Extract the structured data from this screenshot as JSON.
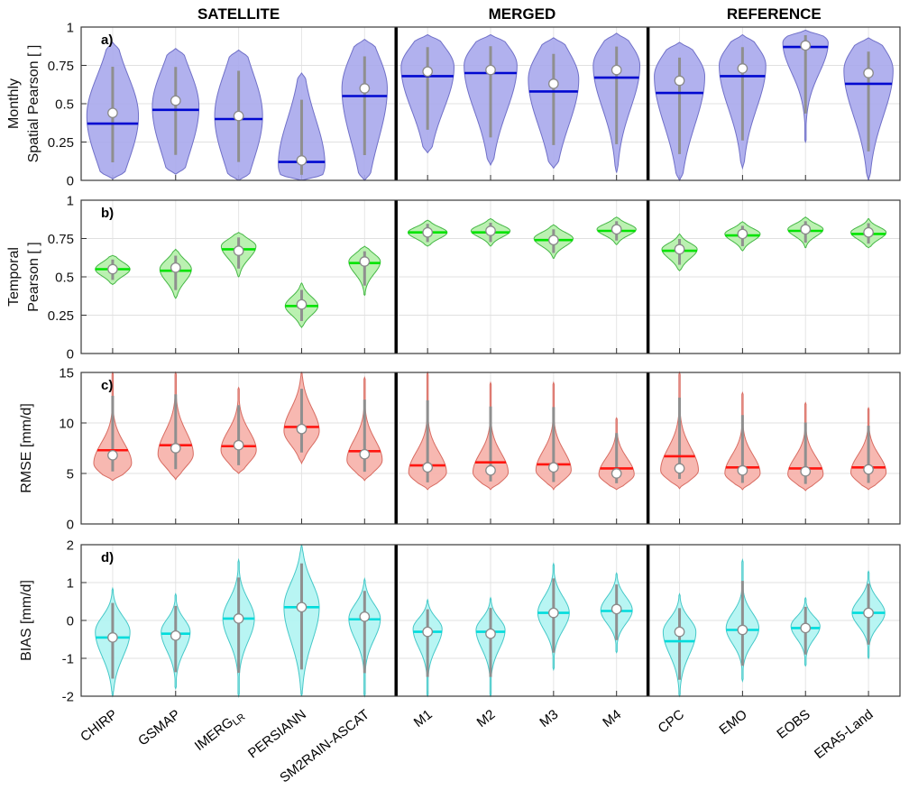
{
  "figure": {
    "background": "#ffffff",
    "group_headers": [
      {
        "label": "SATELLITE",
        "from": 0,
        "to": 4
      },
      {
        "label": "MERGED",
        "from": 5,
        "to": 8
      },
      {
        "label": "REFERENCE",
        "from": 9,
        "to": 12
      }
    ],
    "separators_after": [
      4,
      8
    ],
    "categories": [
      "CHIRP",
      "GSMAP",
      "IMERG_LR",
      "PERSIANN",
      "SM2RAIN-ASCAT",
      "M1",
      "M2",
      "M3",
      "M4",
      "CPC",
      "EMO",
      "EOBS",
      "ERA5-Land"
    ]
  },
  "chart_data": [
    {
      "type": "violin",
      "panel_letter": "a)",
      "ylabel_lines": [
        "Monthly",
        "Spatial Pearson [ ]"
      ],
      "ylim": [
        0,
        1
      ],
      "yticks": [
        0,
        0.25,
        0.5,
        0.75,
        1
      ],
      "ytick_labels": [
        "0",
        "0.25",
        "0.5",
        "0.75",
        "1"
      ],
      "fill": "#a9a9ec",
      "edge": "#7070c8",
      "median_color": "#0008d0",
      "violins": [
        {
          "cat": "CHIRP",
          "lo": 0.01,
          "hi": 0.9,
          "mode": 0.42,
          "sl": 0.3,
          "sh": 0.26,
          "median": 0.37,
          "mean": 0.44,
          "w": 0.82
        },
        {
          "cat": "GSMAP",
          "lo": 0.04,
          "hi": 0.86,
          "mode": 0.48,
          "sl": 0.3,
          "sh": 0.24,
          "median": 0.46,
          "mean": 0.52,
          "w": 0.74
        },
        {
          "cat": "IMERG_LR",
          "lo": 0.0,
          "hi": 0.85,
          "mode": 0.42,
          "sl": 0.3,
          "sh": 0.28,
          "median": 0.4,
          "mean": 0.42,
          "w": 0.76
        },
        {
          "cat": "PERSIANN",
          "lo": 0.0,
          "hi": 0.7,
          "mode": 0.1,
          "sl": 0.14,
          "sh": 0.3,
          "median": 0.12,
          "mean": 0.13,
          "w": 0.74
        },
        {
          "cat": "SM2RAIN-ASCAT",
          "lo": 0.0,
          "hi": 0.92,
          "mode": 0.6,
          "sl": 0.34,
          "sh": 0.22,
          "median": 0.55,
          "mean": 0.6,
          "w": 0.72
        },
        {
          "cat": "M1",
          "lo": 0.18,
          "hi": 0.95,
          "mode": 0.74,
          "sl": 0.28,
          "sh": 0.14,
          "median": 0.68,
          "mean": 0.71,
          "w": 0.84
        },
        {
          "cat": "M2",
          "lo": 0.1,
          "hi": 0.95,
          "mode": 0.75,
          "sl": 0.3,
          "sh": 0.14,
          "median": 0.7,
          "mean": 0.72,
          "w": 0.84
        },
        {
          "cat": "M3",
          "lo": 0.08,
          "hi": 0.93,
          "mode": 0.66,
          "sl": 0.3,
          "sh": 0.18,
          "median": 0.58,
          "mean": 0.63,
          "w": 0.8
        },
        {
          "cat": "M4",
          "lo": 0.05,
          "hi": 0.96,
          "mode": 0.75,
          "sl": 0.28,
          "sh": 0.14,
          "median": 0.67,
          "mean": 0.72,
          "w": 0.74
        },
        {
          "cat": "CPC",
          "lo": 0.0,
          "hi": 0.9,
          "mode": 0.68,
          "sl": 0.32,
          "sh": 0.15,
          "median": 0.57,
          "mean": 0.65,
          "w": 0.8
        },
        {
          "cat": "EMO",
          "lo": 0.08,
          "hi": 0.95,
          "mode": 0.75,
          "sl": 0.28,
          "sh": 0.13,
          "median": 0.68,
          "mean": 0.73,
          "w": 0.74
        },
        {
          "cat": "EOBS",
          "lo": 0.25,
          "hi": 0.98,
          "mode": 0.9,
          "sl": 0.2,
          "sh": 0.06,
          "median": 0.87,
          "mean": 0.88,
          "w": 0.72
        },
        {
          "cat": "ERA5-Land",
          "lo": 0.0,
          "hi": 0.93,
          "mode": 0.72,
          "sl": 0.3,
          "sh": 0.15,
          "median": 0.63,
          "mean": 0.7,
          "w": 0.78
        }
      ]
    },
    {
      "type": "violin",
      "panel_letter": "b)",
      "ylabel_lines": [
        "Temporal",
        "Pearson [ ]"
      ],
      "ylim": [
        0,
        1
      ],
      "yticks": [
        0,
        0.25,
        0.5,
        0.75,
        1
      ],
      "ytick_labels": [
        "0",
        "0.25",
        "0.5",
        "0.75",
        "1"
      ],
      "fill": "#b4f0a8",
      "edge": "#46b846",
      "median_color": "#00e400",
      "violins": [
        {
          "cat": "CHIRP",
          "lo": 0.45,
          "hi": 0.64,
          "mode": 0.55,
          "sl": 0.045,
          "sh": 0.045,
          "median": 0.55,
          "mean": 0.55,
          "w": 0.55
        },
        {
          "cat": "GSMAP",
          "lo": 0.36,
          "hi": 0.68,
          "mode": 0.55,
          "sl": 0.08,
          "sh": 0.06,
          "median": 0.54,
          "mean": 0.56,
          "w": 0.5
        },
        {
          "cat": "IMERG_LR",
          "lo": 0.5,
          "hi": 0.79,
          "mode": 0.7,
          "sl": 0.08,
          "sh": 0.045,
          "median": 0.68,
          "mean": 0.67,
          "w": 0.55
        },
        {
          "cat": "PERSIANN",
          "lo": 0.17,
          "hi": 0.46,
          "mode": 0.31,
          "sl": 0.06,
          "sh": 0.06,
          "median": 0.31,
          "mean": 0.32,
          "w": 0.52
        },
        {
          "cat": "SM2RAIN-ASCAT",
          "lo": 0.38,
          "hi": 0.7,
          "mode": 0.6,
          "sl": 0.08,
          "sh": 0.05,
          "median": 0.59,
          "mean": 0.6,
          "w": 0.5
        },
        {
          "cat": "M1",
          "lo": 0.7,
          "hi": 0.87,
          "mode": 0.79,
          "sl": 0.04,
          "sh": 0.035,
          "median": 0.79,
          "mean": 0.79,
          "w": 0.62
        },
        {
          "cat": "M2",
          "lo": 0.7,
          "hi": 0.88,
          "mode": 0.8,
          "sl": 0.04,
          "sh": 0.035,
          "median": 0.79,
          "mean": 0.8,
          "w": 0.62
        },
        {
          "cat": "M3",
          "lo": 0.62,
          "hi": 0.84,
          "mode": 0.75,
          "sl": 0.05,
          "sh": 0.04,
          "median": 0.74,
          "mean": 0.74,
          "w": 0.62
        },
        {
          "cat": "M4",
          "lo": 0.71,
          "hi": 0.89,
          "mode": 0.81,
          "sl": 0.04,
          "sh": 0.035,
          "median": 0.8,
          "mean": 0.81,
          "w": 0.62
        },
        {
          "cat": "CPC",
          "lo": 0.54,
          "hi": 0.78,
          "mode": 0.68,
          "sl": 0.06,
          "sh": 0.04,
          "median": 0.67,
          "mean": 0.68,
          "w": 0.56
        },
        {
          "cat": "EMO",
          "lo": 0.67,
          "hi": 0.86,
          "mode": 0.78,
          "sl": 0.045,
          "sh": 0.035,
          "median": 0.77,
          "mean": 0.78,
          "w": 0.56
        },
        {
          "cat": "EOBS",
          "lo": 0.69,
          "hi": 0.89,
          "mode": 0.81,
          "sl": 0.045,
          "sh": 0.035,
          "median": 0.8,
          "mean": 0.81,
          "w": 0.56
        },
        {
          "cat": "ERA5-Land",
          "lo": 0.69,
          "hi": 0.88,
          "mode": 0.79,
          "sl": 0.045,
          "sh": 0.035,
          "median": 0.78,
          "mean": 0.79,
          "w": 0.56
        }
      ]
    },
    {
      "type": "violin",
      "panel_letter": "c)",
      "ylabel_lines": [
        "RMSE [mm/d]"
      ],
      "ylim": [
        0,
        15
      ],
      "yticks": [
        0,
        5,
        10,
        15
      ],
      "ytick_labels": [
        "0",
        "5",
        "10",
        "15"
      ],
      "fill": "#f6b0a8",
      "edge": "#d86c62",
      "median_color": "#ff1510",
      "violins": [
        {
          "cat": "CHIRP",
          "lo": 4.3,
          "hi": 15,
          "mode": 6.0,
          "sl": 1.0,
          "sh": 2.0,
          "median": 7.3,
          "mean": 6.8,
          "w": 0.6
        },
        {
          "cat": "GSMAP",
          "lo": 4.4,
          "hi": 15,
          "mode": 6.9,
          "sl": 1.2,
          "sh": 2.2,
          "median": 7.8,
          "mean": 7.5,
          "w": 0.56
        },
        {
          "cat": "IMERG_LR",
          "lo": 5.0,
          "hi": 13.5,
          "mode": 7.3,
          "sl": 1.2,
          "sh": 1.9,
          "median": 7.7,
          "mean": 7.8,
          "w": 0.56
        },
        {
          "cat": "PERSIANN",
          "lo": 6.0,
          "hi": 15,
          "mode": 9.2,
          "sl": 1.4,
          "sh": 2.2,
          "median": 9.6,
          "mean": 9.4,
          "w": 0.56
        },
        {
          "cat": "SM2RAIN-ASCAT",
          "lo": 4.3,
          "hi": 14.5,
          "mode": 6.3,
          "sl": 1.0,
          "sh": 2.0,
          "median": 7.2,
          "mean": 6.9,
          "w": 0.56
        },
        {
          "cat": "M1",
          "lo": 3.4,
          "hi": 15,
          "mode": 5.1,
          "sl": 0.9,
          "sh": 2.0,
          "median": 5.8,
          "mean": 5.6,
          "w": 0.6
        },
        {
          "cat": "M2",
          "lo": 3.4,
          "hi": 14,
          "mode": 5.1,
          "sl": 0.9,
          "sh": 1.9,
          "median": 6.1,
          "mean": 5.3,
          "w": 0.56
        },
        {
          "cat": "M3",
          "lo": 3.4,
          "hi": 14,
          "mode": 5.3,
          "sl": 0.9,
          "sh": 1.9,
          "median": 5.9,
          "mean": 5.6,
          "w": 0.56
        },
        {
          "cat": "M4",
          "lo": 3.4,
          "hi": 10.5,
          "mode": 4.9,
          "sl": 0.8,
          "sh": 1.6,
          "median": 5.5,
          "mean": 5.0,
          "w": 0.56
        },
        {
          "cat": "CPC",
          "lo": 3.5,
          "hi": 15,
          "mode": 5.3,
          "sl": 0.9,
          "sh": 2.2,
          "median": 6.7,
          "mean": 5.5,
          "w": 0.6
        },
        {
          "cat": "EMO",
          "lo": 3.4,
          "hi": 13,
          "mode": 5.0,
          "sl": 0.8,
          "sh": 1.8,
          "median": 5.6,
          "mean": 5.3,
          "w": 0.56
        },
        {
          "cat": "EOBS",
          "lo": 3.3,
          "hi": 12,
          "mode": 4.9,
          "sl": 0.8,
          "sh": 1.7,
          "median": 5.5,
          "mean": 5.2,
          "w": 0.56
        },
        {
          "cat": "ERA5-Land",
          "lo": 3.4,
          "hi": 11.5,
          "mode": 5.1,
          "sl": 0.9,
          "sh": 1.7,
          "median": 5.6,
          "mean": 5.4,
          "w": 0.56
        }
      ]
    },
    {
      "type": "violin",
      "panel_letter": "d)",
      "ylabel_lines": [
        "BIAS [mm/d]"
      ],
      "ylim": [
        -2,
        2
      ],
      "yticks": [
        -2,
        -1,
        0,
        1,
        2
      ],
      "ytick_labels": [
        "-2",
        "-1",
        "0",
        "1",
        "2"
      ],
      "fill": "#b0f4f2",
      "edge": "#45c8c8",
      "median_color": "#00dcdc",
      "violins": [
        {
          "cat": "CHIRP",
          "lo": -2,
          "hi": 0.85,
          "mode": -0.3,
          "sl": 0.65,
          "sh": 0.4,
          "median": -0.45,
          "mean": -0.45,
          "w": 0.55
        },
        {
          "cat": "GSMAP",
          "lo": -1.8,
          "hi": 0.7,
          "mode": -0.3,
          "sl": 0.5,
          "sh": 0.33,
          "median": -0.35,
          "mean": -0.4,
          "w": 0.46
        },
        {
          "cat": "IMERG_LR",
          "lo": -2,
          "hi": 1.6,
          "mode": 0.05,
          "sl": 0.6,
          "sh": 0.5,
          "median": 0.05,
          "mean": 0.05,
          "w": 0.5
        },
        {
          "cat": "PERSIANN",
          "lo": -2,
          "hi": 2,
          "mode": 0.35,
          "sl": 0.9,
          "sh": 0.65,
          "median": 0.35,
          "mean": 0.35,
          "w": 0.56
        },
        {
          "cat": "SM2RAIN-ASCAT",
          "lo": -2,
          "hi": 1.1,
          "mode": 0.05,
          "sl": 0.55,
          "sh": 0.38,
          "median": 0.03,
          "mean": 0.1,
          "w": 0.5
        },
        {
          "cat": "M1",
          "lo": -2,
          "hi": 0.55,
          "mode": -0.22,
          "sl": 0.5,
          "sh": 0.28,
          "median": -0.3,
          "mean": -0.3,
          "w": 0.46
        },
        {
          "cat": "M2",
          "lo": -2,
          "hi": 0.6,
          "mode": -0.25,
          "sl": 0.5,
          "sh": 0.3,
          "median": -0.3,
          "mean": -0.35,
          "w": 0.46
        },
        {
          "cat": "M3",
          "lo": -1.3,
          "hi": 1.5,
          "mode": 0.2,
          "sl": 0.45,
          "sh": 0.42,
          "median": 0.2,
          "mean": 0.2,
          "w": 0.5
        },
        {
          "cat": "M4",
          "lo": -0.85,
          "hi": 1.25,
          "mode": 0.27,
          "sl": 0.35,
          "sh": 0.35,
          "median": 0.25,
          "mean": 0.3,
          "w": 0.5
        },
        {
          "cat": "CPC",
          "lo": -2,
          "hi": 0.7,
          "mode": -0.3,
          "sl": 0.6,
          "sh": 0.35,
          "median": -0.55,
          "mean": -0.3,
          "w": 0.52
        },
        {
          "cat": "EMO",
          "lo": -1.6,
          "hi": 1.6,
          "mode": -0.2,
          "sl": 0.42,
          "sh": 0.4,
          "median": -0.25,
          "mean": -0.25,
          "w": 0.52
        },
        {
          "cat": "EOBS",
          "lo": -1.2,
          "hi": 0.6,
          "mode": -0.15,
          "sl": 0.33,
          "sh": 0.25,
          "median": -0.2,
          "mean": -0.2,
          "w": 0.46
        },
        {
          "cat": "ERA5-Land",
          "lo": -1.0,
          "hi": 1.3,
          "mode": 0.2,
          "sl": 0.35,
          "sh": 0.35,
          "median": 0.2,
          "mean": 0.2,
          "w": 0.52
        }
      ]
    }
  ]
}
